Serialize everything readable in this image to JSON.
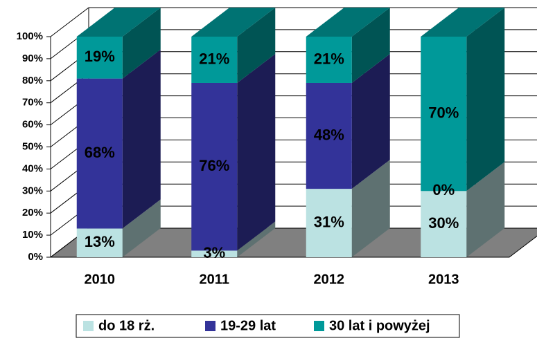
{
  "chart_data": {
    "type": "bar3d_stacked",
    "categories": [
      "2010",
      "2011",
      "2012",
      "2013"
    ],
    "series": [
      {
        "name": "do 18 rż.",
        "color": "#bbe2e2",
        "values": [
          13,
          3,
          31,
          30
        ],
        "value_labels": [
          "13%",
          "3%",
          "31%",
          "30%"
        ]
      },
      {
        "name": "19-29 lat",
        "color": "#333399",
        "values": [
          68,
          76,
          48,
          0
        ],
        "value_labels": [
          "68%",
          "76%",
          "48%",
          "0%"
        ]
      },
      {
        "name": "30 lat i powyżej",
        "color": "#009999",
        "values": [
          19,
          21,
          21,
          70
        ],
        "value_labels": [
          "19%",
          "21%",
          "21%",
          "70%"
        ]
      }
    ],
    "ylim": [
      0,
      100
    ],
    "yticks": [
      {
        "value": 0,
        "label": "0%"
      },
      {
        "value": 10,
        "label": "10%"
      },
      {
        "value": 20,
        "label": "20%"
      },
      {
        "value": 30,
        "label": "30%"
      },
      {
        "value": 40,
        "label": "40%"
      },
      {
        "value": 50,
        "label": "50%"
      },
      {
        "value": 60,
        "label": "60%"
      },
      {
        "value": 70,
        "label": "70%"
      },
      {
        "value": 80,
        "label": "80%"
      },
      {
        "value": 90,
        "label": "90%"
      },
      {
        "value": 100,
        "label": "100%"
      }
    ],
    "grid": true,
    "legend": "bottom"
  }
}
